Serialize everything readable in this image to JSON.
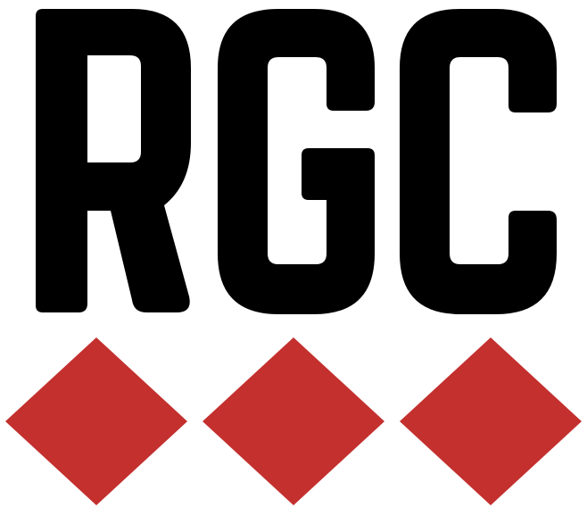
{
  "logo": {
    "wordmark": "RGC",
    "colors": {
      "letters": "#000000",
      "diamonds": "#C3302E",
      "background": "#FFFFFF"
    },
    "diamonds": [
      "diamond",
      "diamond",
      "diamond"
    ]
  }
}
